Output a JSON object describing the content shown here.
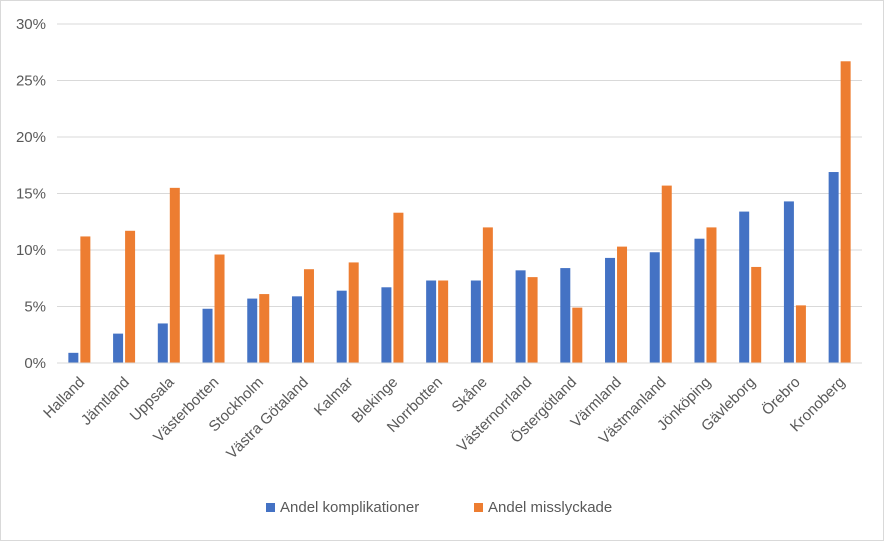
{
  "chart_data": {
    "type": "bar",
    "title": "",
    "xlabel": "",
    "ylabel": "",
    "ylim": [
      0,
      0.3
    ],
    "y_tick_labels": [
      "0%",
      "5%",
      "10%",
      "15%",
      "20%",
      "25%",
      "30%"
    ],
    "y_ticks": [
      0,
      0.05,
      0.1,
      0.15,
      0.2,
      0.25,
      0.3
    ],
    "grid": true,
    "legend_position": "bottom",
    "categories": [
      "Halland",
      "Jämtland",
      "Uppsala",
      "Västerbotten",
      "Stockholm",
      "Västra Götaland",
      "Kalmar",
      "Blekinge",
      "Norrbotten",
      "Skåne",
      "Västernorrland",
      "Östergötland",
      "Värmland",
      "Västmanland",
      "Jönköping",
      "Gävleborg",
      "Örebro",
      "Kronoberg"
    ],
    "series": [
      {
        "name": "Andel komplikationer",
        "color": "#4472c4",
        "values": [
          0.009,
          0.026,
          0.035,
          0.048,
          0.057,
          0.059,
          0.064,
          0.067,
          0.073,
          0.073,
          0.082,
          0.084,
          0.093,
          0.098,
          0.11,
          0.134,
          0.143,
          0.169
        ]
      },
      {
        "name": "Andel misslyckade",
        "color": "#ed7d31",
        "values": [
          0.112,
          0.117,
          0.155,
          0.096,
          0.061,
          0.083,
          0.089,
          0.133,
          0.073,
          0.12,
          0.076,
          0.049,
          0.103,
          0.157,
          0.12,
          0.085,
          0.051,
          0.267
        ]
      }
    ]
  }
}
